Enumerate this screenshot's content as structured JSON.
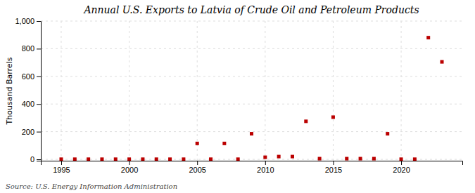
{
  "chart_data": {
    "type": "scatter",
    "title": "Annual U.S. Exports to Latvia of Crude Oil and Petroleum Products",
    "y_label": "Thousand Barrels",
    "annotations": [
      "Source: U.S. Energy Information Administration"
    ],
    "x": [
      1995,
      1996,
      1997,
      1998,
      1999,
      2000,
      2001,
      2002,
      2003,
      2004,
      2005,
      2006,
      2007,
      2008,
      2009,
      2010,
      2011,
      2012,
      2013,
      2014,
      2015,
      2016,
      2017,
      2018,
      2019,
      2020,
      2021,
      2022,
      2023
    ],
    "values": [
      1,
      1,
      1,
      1,
      1,
      1,
      1,
      1,
      1,
      1,
      115,
      1,
      115,
      1,
      185,
      15,
      20,
      20,
      275,
      5,
      305,
      5,
      5,
      5,
      185,
      1,
      1,
      880,
      705
    ],
    "color": "#bb0000",
    "marker": "square",
    "xlim": [
      1993.5,
      2024.5
    ],
    "xticks": [
      1995,
      2000,
      2005,
      2010,
      2015,
      2020
    ],
    "ylim": [
      -10,
      1000
    ],
    "yticks": [
      0,
      200,
      400,
      600,
      800,
      {
        "value": 1000,
        "label": "1,000"
      }
    ],
    "grid": true
  }
}
